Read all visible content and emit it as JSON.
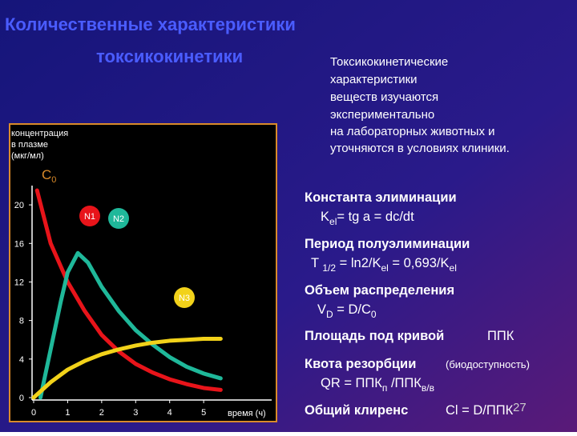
{
  "title": [
    "Количественные характеристики",
    "токсикокинетики"
  ],
  "intro": [
    "Токсикокинетические",
    "характеристики",
    "веществ изучаются",
    "экспериментально",
    "на лабораторных животных и",
    "уточняются в условиях клиники."
  ],
  "items": [
    {
      "label": "Константа элиминации",
      "formula": [
        "K",
        "el",
        "= tg a = dc/dt"
      ]
    },
    {
      "label": "Период полуэлиминации",
      "formula": [
        "T ",
        "1/2",
        " = ln2/K",
        "el",
        " = 0,693/K",
        "el"
      ]
    },
    {
      "label": "Объем распределения",
      "formula": [
        "V",
        "D",
        " = D/C",
        "0"
      ]
    },
    {
      "label": "Площадь под кривой",
      "formula": [
        "ППК"
      ]
    },
    {
      "label": "Квота резорбции",
      "note": "(биодоступность)",
      "formula": [
        "QR = ППК",
        "п",
        " /ППК",
        "в/в"
      ]
    },
    {
      "label": "Общий клиренс",
      "formula": [
        "Cl = D/ППК"
      ]
    }
  ],
  "page_number": "27",
  "chart_data": {
    "type": "line",
    "y_label": [
      "концентрация",
      "в плазме",
      "(мкг/мл)"
    ],
    "x_label": "время (ч)",
    "start_label": [
      "C",
      "0"
    ],
    "xlim": [
      0,
      7
    ],
    "xticks": [
      0,
      1,
      2,
      3,
      4,
      5
    ],
    "ylim": [
      0,
      22
    ],
    "yticks": [
      0,
      4,
      8,
      12,
      16,
      20
    ],
    "series": [
      {
        "name": "N1",
        "color": "#e8141a",
        "x": [
          0.1,
          0.5,
          1,
          1.5,
          2,
          2.5,
          3,
          3.5,
          4,
          4.5,
          5,
          5.5
        ],
        "values": [
          21.5,
          16,
          12,
          9,
          6.5,
          4.8,
          3.5,
          2.6,
          1.9,
          1.4,
          1,
          0.8
        ]
      },
      {
        "name": "N2",
        "color": "#1fb89a",
        "x": [
          0.2,
          0.5,
          0.8,
          1,
          1.3,
          1.6,
          2,
          2.5,
          3,
          3.5,
          4,
          4.5,
          5,
          5.5
        ],
        "values": [
          0,
          5,
          10,
          13,
          15,
          14,
          11.5,
          9,
          7,
          5.5,
          4.2,
          3.2,
          2.5,
          2
        ]
      },
      {
        "name": "N3",
        "color": "#f2d21a",
        "x": [
          0,
          0.5,
          1,
          1.5,
          2,
          2.5,
          3,
          3.5,
          4,
          4.5,
          5,
          5.5
        ],
        "values": [
          0,
          1.6,
          2.9,
          3.8,
          4.5,
          5,
          5.4,
          5.7,
          5.9,
          6,
          6.1,
          6.1
        ]
      }
    ]
  }
}
